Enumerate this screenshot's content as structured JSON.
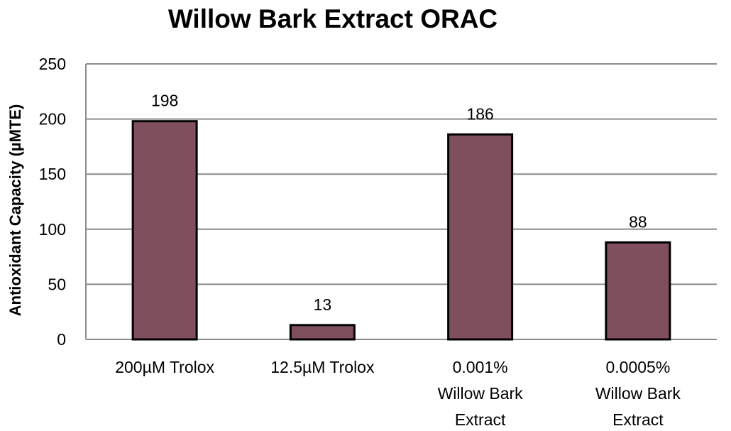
{
  "chart_data": {
    "type": "bar",
    "title": "Willow Bark Extract ORAC",
    "xlabel": "",
    "ylabel": "Antioxidant Capacity (µMTE)",
    "ylim": [
      0,
      250
    ],
    "yticks": [
      0,
      50,
      100,
      150,
      200,
      250
    ],
    "grid": true,
    "legend": "none",
    "categories": [
      [
        "200µM Trolox"
      ],
      [
        "12.5µM Trolox"
      ],
      [
        "0.001%",
        "Willow Bark",
        "Extract"
      ],
      [
        "0.0005%",
        "Willow Bark",
        "Extract"
      ]
    ],
    "values": [
      198,
      13,
      186,
      88
    ],
    "data_labels": [
      "198",
      "13",
      "186",
      "88"
    ],
    "bar_color": "#7f4f5d",
    "bar_edge_color": "#000000",
    "grid_color": "#8c8c8c"
  }
}
